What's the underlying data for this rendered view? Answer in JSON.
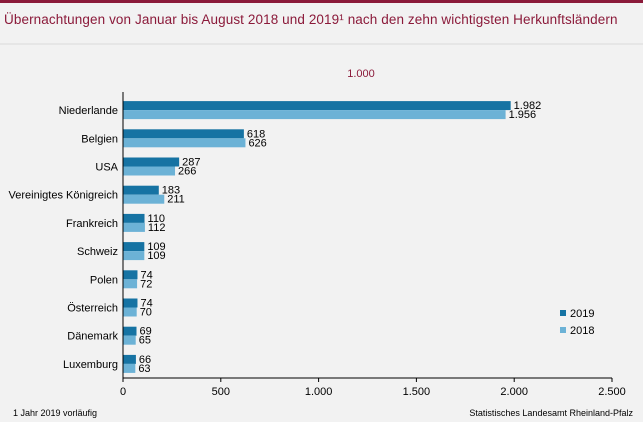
{
  "title": "Übernachtungen von Januar bis August 2018 und 2019¹ nach den zehn wichtigsten Herkunftsländern",
  "footnote": "1 Jahr 2019 vorläufig",
  "source": "Statistisches Landesamt Rheinland-Pfalz",
  "colors": {
    "accent": "#8b1a3a",
    "series_2019": "#1673a3",
    "series_2018": "#6cb2d6"
  },
  "chart_data": {
    "type": "bar",
    "orientation": "horizontal",
    "unit_label": "1.000",
    "categories": [
      "Niederlande",
      "Belgien",
      "USA",
      "Vereinigtes Königreich",
      "Frankreich",
      "Schweiz",
      "Polen",
      "Österreich",
      "Dänemark",
      "Luxemburg"
    ],
    "series": [
      {
        "name": "2019",
        "values": [
          1982,
          618,
          287,
          183,
          110,
          109,
          74,
          74,
          69,
          66
        ],
        "labels": [
          "1.982",
          "618",
          "287",
          "183",
          "110",
          "109",
          "74",
          "74",
          "69",
          "66"
        ]
      },
      {
        "name": "2018",
        "values": [
          1956,
          626,
          266,
          211,
          112,
          109,
          72,
          70,
          65,
          63
        ],
        "labels": [
          "1.956",
          "626",
          "266",
          "211",
          "112",
          "109",
          "72",
          "70",
          "65",
          "63"
        ]
      }
    ],
    "xlim": [
      0,
      2500
    ],
    "x_ticks": [
      0,
      500,
      1000,
      1500,
      2000,
      2500
    ],
    "x_tick_labels": [
      "0",
      "500",
      "1.000",
      "1.500",
      "2.000",
      "2.500"
    ],
    "grid": false,
    "legend_position": "bottom-right"
  }
}
